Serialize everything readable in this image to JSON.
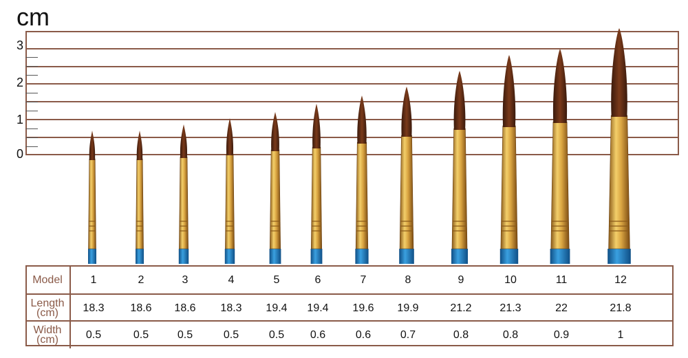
{
  "unit_label": "cm",
  "ruler_ticks": [
    "3",
    "2",
    "1",
    "0"
  ],
  "table": {
    "row_labels": {
      "model": "Model",
      "length": "Length\n(cm)",
      "width": "Width\n(cm)"
    },
    "models": [
      "1",
      "2",
      "3",
      "4",
      "5",
      "6",
      "7",
      "8",
      "9",
      "10",
      "11",
      "12"
    ],
    "lengths": [
      "18.3",
      "18.6",
      "18.6",
      "18.3",
      "19.4",
      "19.4",
      "19.6",
      "19.9",
      "21.2",
      "21.3",
      "22",
      "21.8"
    ],
    "widths": [
      "0.5",
      "0.5",
      "0.5",
      "0.5",
      "0.5",
      "0.6",
      "0.6",
      "0.7",
      "0.8",
      "0.8",
      "0.9",
      "1"
    ]
  },
  "colors": {
    "ruler_line": "#8a5a48",
    "bristle": "#5a2a16",
    "ferrule": "#d9a441",
    "handle": "#1f7fbf"
  }
}
